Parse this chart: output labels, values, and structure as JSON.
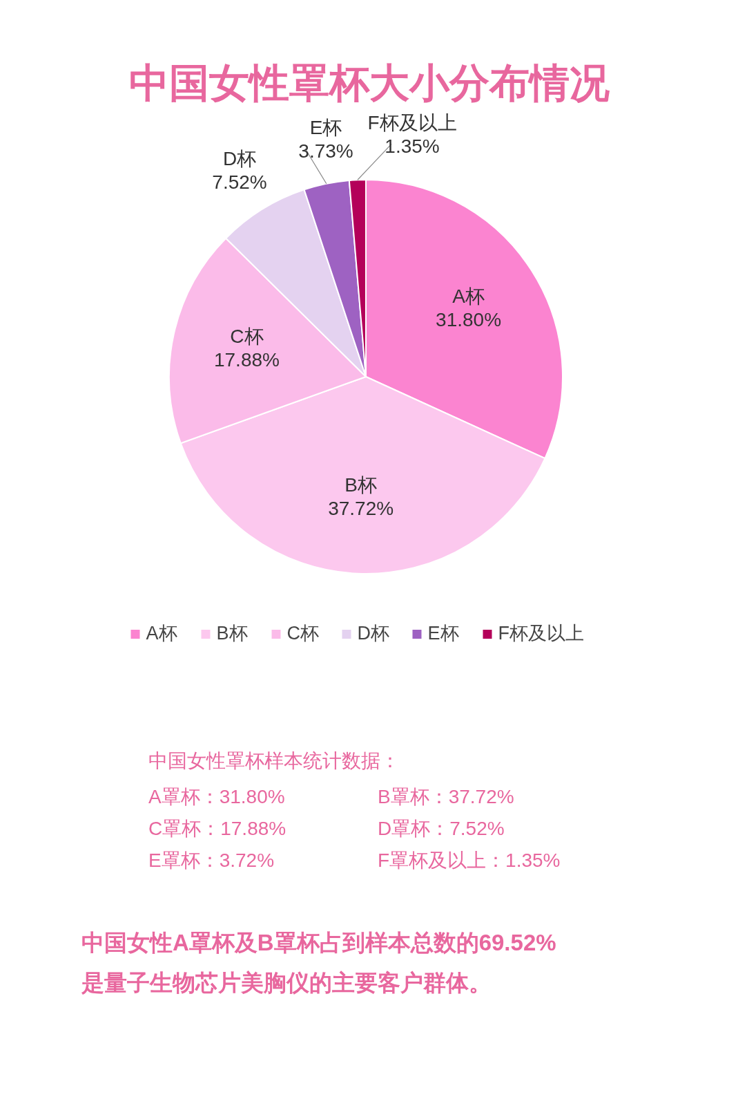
{
  "chart_data": {
    "type": "pie",
    "title": "中国女性罩杯大小分布情况",
    "categories": [
      "A杯",
      "B杯",
      "C杯",
      "D杯",
      "E杯",
      "F杯及以上"
    ],
    "values": [
      31.8,
      37.72,
      17.88,
      7.52,
      3.73,
      1.35
    ],
    "colors": [
      "#fb84d0",
      "#fcc8ee",
      "#fbbbe9",
      "#e4d2f0",
      "#9e62c2",
      "#b4005a"
    ],
    "value_labels": [
      "31.80%",
      "37.72%",
      "17.88%",
      "7.52%",
      "3.73%",
      "1.35%"
    ],
    "legend": "bottom",
    "annotations": [
      "中国女性罩杯样本统计数据：",
      "A罩杯：31.80%",
      "B罩杯：37.72%",
      "C罩杯：17.88%",
      "D罩杯：7.52%",
      "E罩杯：3.72%",
      "F罩杯及以上：1.35%",
      "中国女性A罩杯及B罩杯占到样本总数的69.52%",
      "是量子生物芯片美胸仪的主要客户群体。"
    ]
  }
}
